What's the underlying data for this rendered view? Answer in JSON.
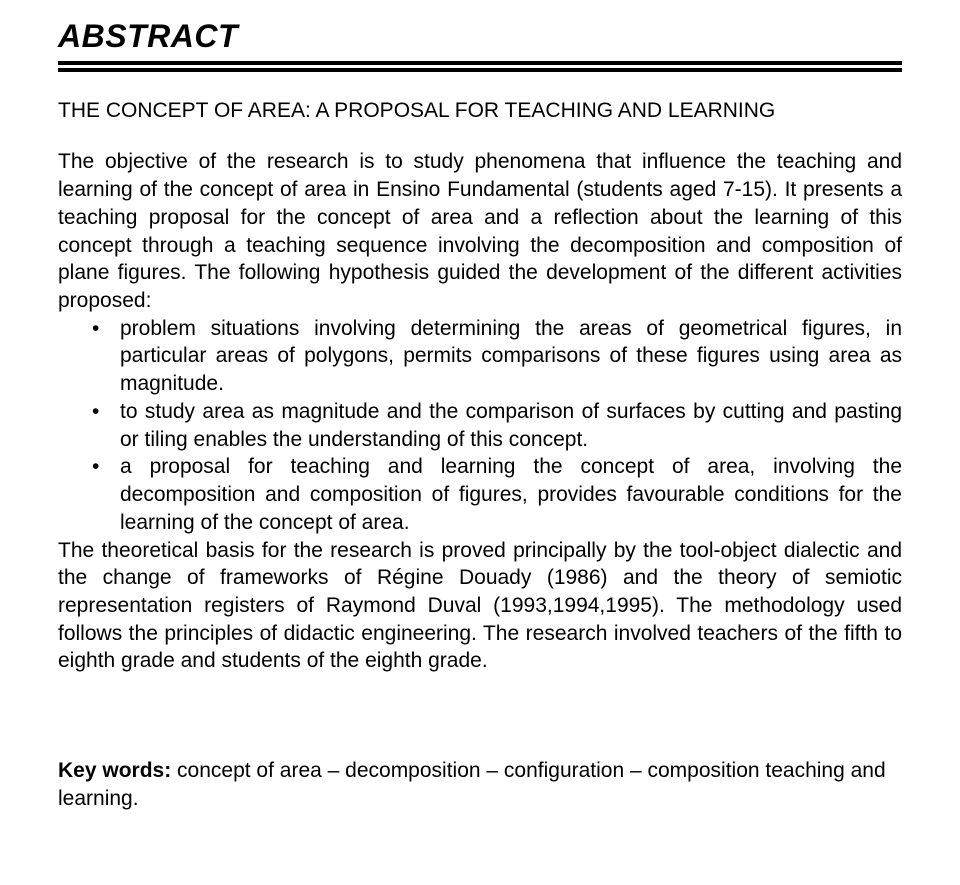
{
  "title": "ABSTRACT",
  "subheading": "THE CONCEPT OF AREA: A PROPOSAL FOR TEACHING AND LEARNING",
  "intro": "The objective of the research is to study phenomena that influence the teaching and learning of the concept of area in Ensino Fundamental (students aged 7-15). It presents a teaching proposal for the concept of area and a reflection about the learning of this concept through a teaching sequence involving the decomposition and composition of plane figures. The following hypothesis guided the development of the different activities proposed:",
  "bullets": [
    "problem situations involving determining the areas of geometrical figures, in particular areas of polygons, permits comparisons of these figures using area as magnitude.",
    "to study area as magnitude and the comparison of surfaces by cutting and pasting or tiling enables the understanding of this concept.",
    "a proposal for teaching and learning the concept of area, involving the decomposition and composition of figures, provides favourable conditions for the learning of the concept of area."
  ],
  "closing": "The theoretical basis for the research is proved principally by the tool-object dialectic and the change of frameworks of Régine Douady (1986) and the theory of semiotic representation registers of Raymond Duval (1993,1994,1995). The methodology used follows the principles of didactic engineering. The research involved teachers of the fifth to eighth grade and students of the eighth grade.",
  "keywords_label": "Key words:",
  "keywords_text": " concept of area – decomposition – configuration – composition teaching and learning."
}
